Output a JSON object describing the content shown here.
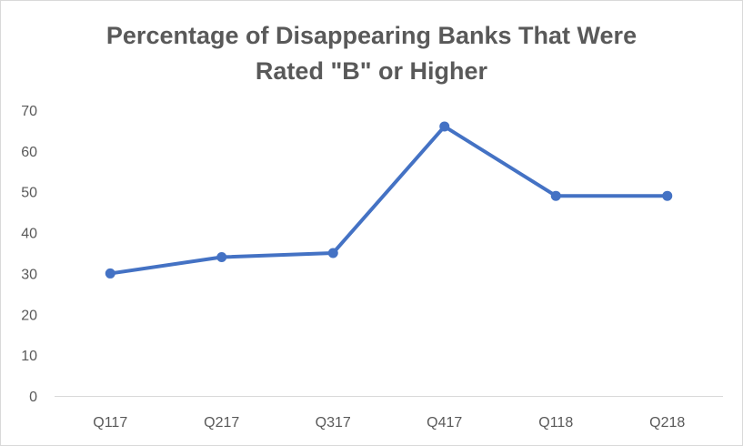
{
  "chart_data": {
    "type": "line",
    "title_lines": [
      "Percentage of Disappearing Banks That Were",
      "Rated \"B\" or Higher"
    ],
    "categories": [
      "Q117",
      "Q217",
      "Q317",
      "Q417",
      "Q118",
      "Q218"
    ],
    "series": [
      {
        "values": [
          30,
          34,
          35,
          66,
          49,
          49
        ],
        "color": "#4472c4"
      }
    ],
    "yticks": [
      0,
      10,
      20,
      30,
      40,
      50,
      60,
      70
    ],
    "ylim": [
      0,
      70
    ],
    "xlabel": "",
    "ylabel": "",
    "grid": false,
    "legend": "none"
  }
}
